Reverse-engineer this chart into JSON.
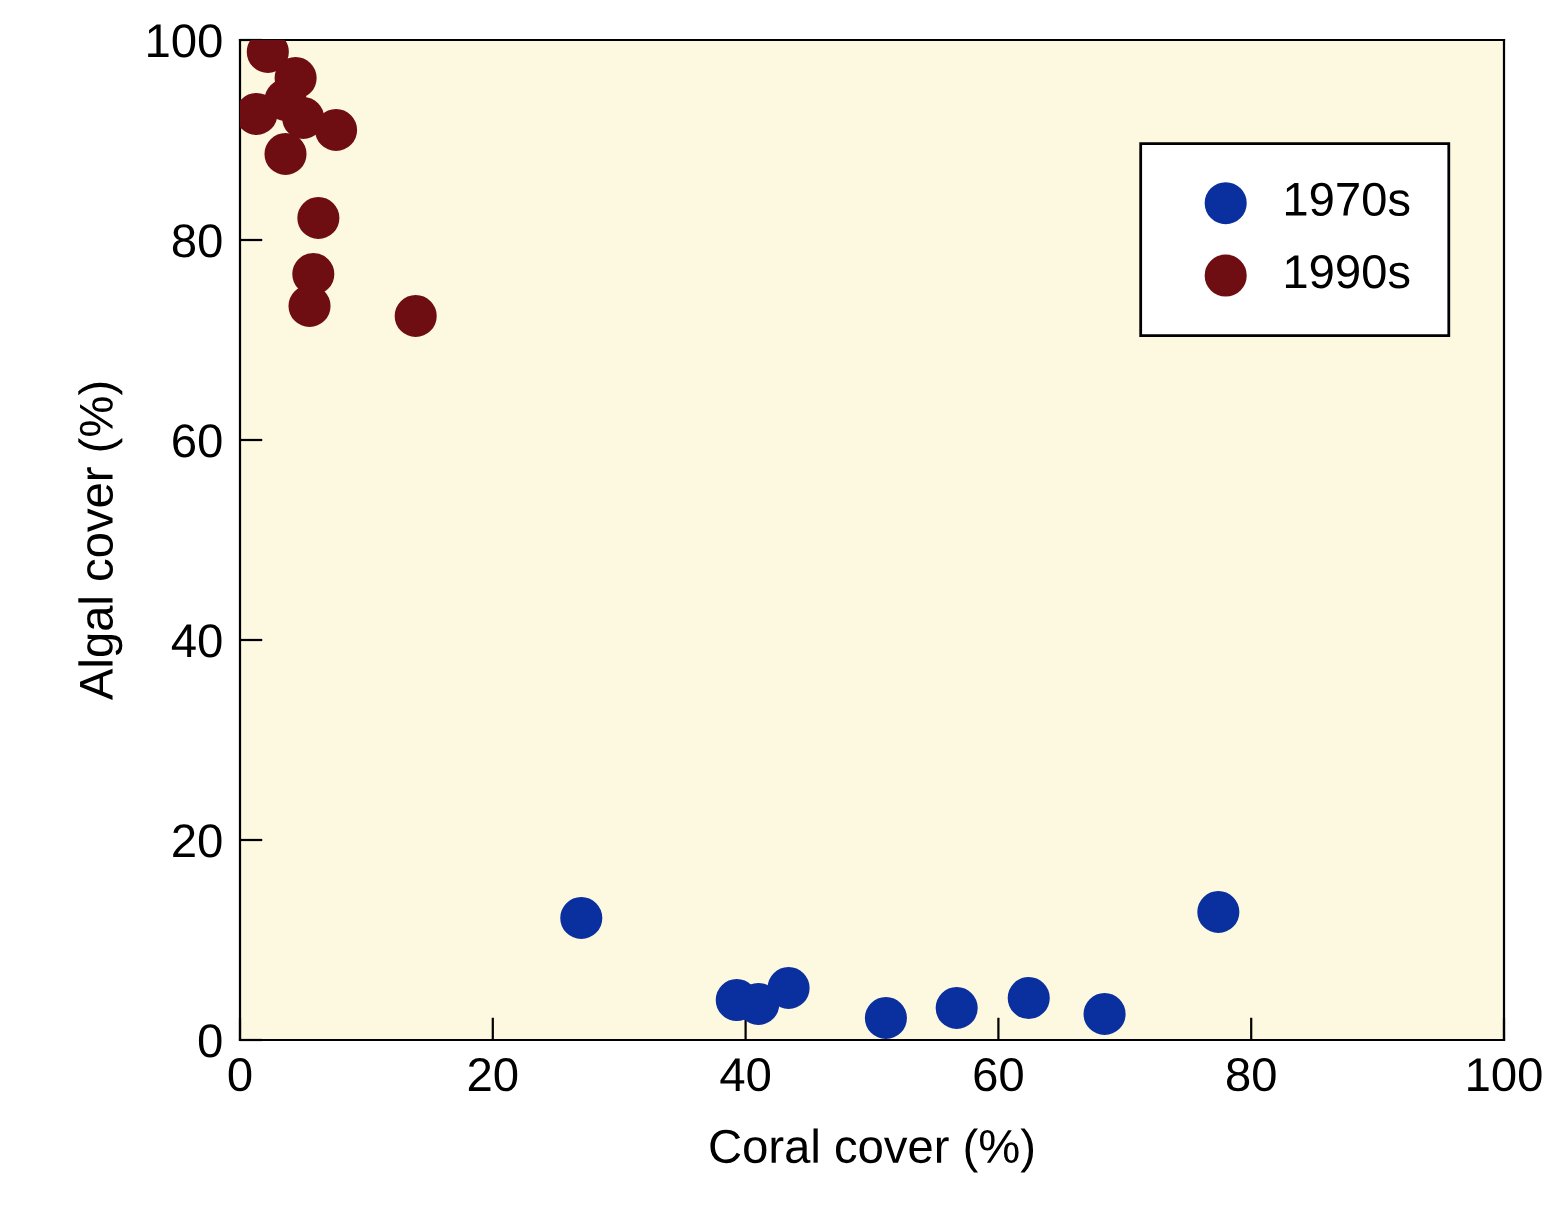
{
  "chart_data": {
    "type": "scatter",
    "xlabel": "Coral cover (%)",
    "ylabel": "Algal cover (%)",
    "xlim": [
      0,
      100
    ],
    "ylim": [
      0,
      100
    ],
    "xticks": [
      0,
      20,
      40,
      60,
      80,
      100
    ],
    "yticks": [
      0,
      20,
      40,
      60,
      80,
      100
    ],
    "grid": false,
    "legend": "top right",
    "marker": "circle",
    "series": [
      {
        "name": "1970s",
        "color": "#0a2f9e",
        "x": [
          27.0,
          39.3,
          41.0,
          43.4,
          51.1,
          56.7,
          62.4,
          68.4,
          77.4
        ],
        "values": [
          12.2,
          4.0,
          3.6,
          5.2,
          2.2,
          3.2,
          4.2,
          2.6,
          12.8
        ]
      },
      {
        "name": "1990s",
        "color": "#6e0d12",
        "x": [
          2.2,
          4.4,
          1.3,
          3.6,
          5.0,
          7.6,
          3.6,
          6.2,
          5.8,
          5.5,
          13.9
        ],
        "values": [
          98.8,
          96.2,
          92.6,
          94.0,
          92.2,
          91.0,
          88.6,
          82.2,
          76.6,
          73.4,
          72.4
        ]
      }
    ]
  }
}
